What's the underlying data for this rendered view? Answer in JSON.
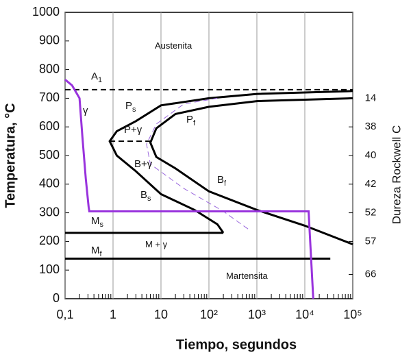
{
  "chart_data": {
    "type": "line",
    "xlabel": "Tiempo, segundos",
    "ylabel": "Temperatura, °C",
    "y2label": "Dureza Rockwell C",
    "xscale": "log",
    "xlim": [
      0.1,
      100000
    ],
    "ylim": [
      0,
      1000
    ],
    "xticks": [
      {
        "value": 0.1,
        "label": "0,1"
      },
      1,
      10,
      {
        "value": 100,
        "label": "10²"
      },
      {
        "value": 1000,
        "label": "10³"
      },
      {
        "value": 10000,
        "label": "10⁴"
      },
      {
        "value": 100000,
        "label": "10⁵"
      }
    ],
    "yticks": [
      0,
      100,
      200,
      300,
      400,
      500,
      600,
      700,
      800,
      900,
      1000
    ],
    "grid": true,
    "hardness": [
      {
        "value": 700,
        "label": "14"
      },
      {
        "value": 600,
        "label": "38"
      },
      {
        "value": 500,
        "label": "40"
      },
      {
        "value": 400,
        "label": "42"
      },
      {
        "value": 300,
        "label": "52"
      },
      {
        "value": 200,
        "label": "57"
      },
      {
        "value": 85,
        "label": "66"
      }
    ],
    "series": [
      {
        "color": "#000000",
        "dash": true,
        "x": [
          0.1,
          100000
        ],
        "values": [
          730,
          730
        ]
      },
      {
        "color": "#000000",
        "dash": false,
        "x": [
          100000,
          1000,
          100,
          10,
          3,
          1.2,
          0.85,
          1.2,
          3,
          10,
          50,
          150,
          200
        ],
        "values": [
          725,
          715,
          700,
          675,
          620,
          585,
          550,
          500,
          445,
          365,
          310,
          260,
          230
        ]
      },
      {
        "color": "#000000",
        "dash": false,
        "x": [
          100000,
          1000,
          100,
          20,
          8,
          6,
          8,
          20,
          100,
          1000,
          10000,
          100000
        ],
        "values": [
          700,
          690,
          670,
          645,
          595,
          545,
          495,
          455,
          375,
          310,
          255,
          190
        ]
      },
      {
        "color": "#000000",
        "dash": true,
        "x": [
          0.85,
          6
        ],
        "values": [
          550,
          550
        ]
      },
      {
        "color": "#9966dd",
        "dash": true,
        "x": [
          150,
          30,
          8,
          5,
          6,
          30,
          200,
          700
        ],
        "values": [
          700,
          680,
          610,
          540,
          470,
          385,
          305,
          240
        ]
      },
      {
        "color": "#000000",
        "dash": false,
        "x": [
          0.1,
          200
        ],
        "values": [
          230,
          230
        ]
      },
      {
        "color": "#000000",
        "dash": false,
        "x": [
          0.1,
          34000
        ],
        "values": [
          140,
          140
        ]
      },
      {
        "color": "#9933dd",
        "dash": false,
        "x": [
          0.1,
          0.14,
          0.2,
          0.23,
          0.27,
          0.31,
          0.32,
          12000,
          15000
        ],
        "values": [
          765,
          745,
          700,
          565,
          420,
          320,
          305,
          305,
          0
        ]
      }
    ],
    "labels": [
      {
        "text": "Austenita"
      },
      {
        "text": "A",
        "sub": "1"
      },
      {
        "text": "γ"
      },
      {
        "text": "P",
        "sub": "s"
      },
      {
        "text": "P+γ"
      },
      {
        "text": "P",
        "sub": "f"
      },
      {
        "text": "B+γ"
      },
      {
        "text": "B",
        "sub": "f"
      },
      {
        "text": "B",
        "sub": "s"
      },
      {
        "text": "M",
        "sub": "s"
      },
      {
        "text": "M",
        "sub": "f"
      },
      {
        "text": "M + γ"
      },
      {
        "text": "Martensita"
      }
    ]
  }
}
